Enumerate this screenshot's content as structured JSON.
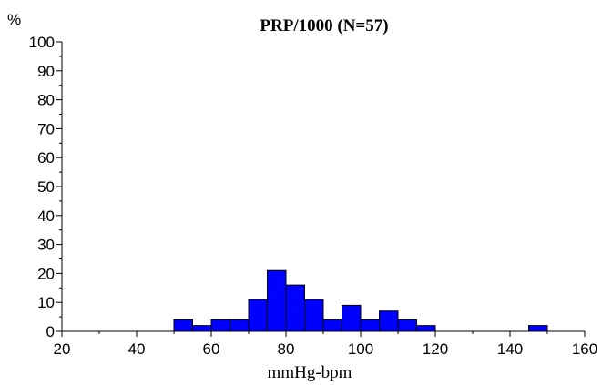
{
  "chart_data": {
    "type": "bar",
    "title": "PRP/1000 (N=57)",
    "xlabel": "mmHg-bpm",
    "ylabel": "%",
    "xlim": [
      20,
      160
    ],
    "ylim": [
      0,
      100
    ],
    "x_ticks": [
      20,
      40,
      60,
      80,
      100,
      120,
      140,
      160
    ],
    "y_ticks": [
      0,
      10,
      20,
      30,
      40,
      50,
      60,
      70,
      80,
      90,
      100
    ],
    "bin_width": 5,
    "bins": [
      {
        "x0": 50,
        "x1": 55,
        "value": 4
      },
      {
        "x0": 55,
        "x1": 60,
        "value": 2
      },
      {
        "x0": 60,
        "x1": 65,
        "value": 4
      },
      {
        "x0": 65,
        "x1": 70,
        "value": 4
      },
      {
        "x0": 70,
        "x1": 75,
        "value": 11
      },
      {
        "x0": 75,
        "x1": 80,
        "value": 21
      },
      {
        "x0": 80,
        "x1": 85,
        "value": 16
      },
      {
        "x0": 85,
        "x1": 90,
        "value": 11
      },
      {
        "x0": 90,
        "x1": 95,
        "value": 4
      },
      {
        "x0": 95,
        "x1": 100,
        "value": 9
      },
      {
        "x0": 100,
        "x1": 105,
        "value": 4
      },
      {
        "x0": 105,
        "x1": 110,
        "value": 7
      },
      {
        "x0": 110,
        "x1": 115,
        "value": 4
      },
      {
        "x0": 115,
        "x1": 120,
        "value": 2
      },
      {
        "x0": 145,
        "x1": 150,
        "value": 2
      }
    ],
    "colors": {
      "bar_fill": "#0000ff",
      "bar_stroke": "#000000"
    },
    "grid": false,
    "legend": "none"
  }
}
